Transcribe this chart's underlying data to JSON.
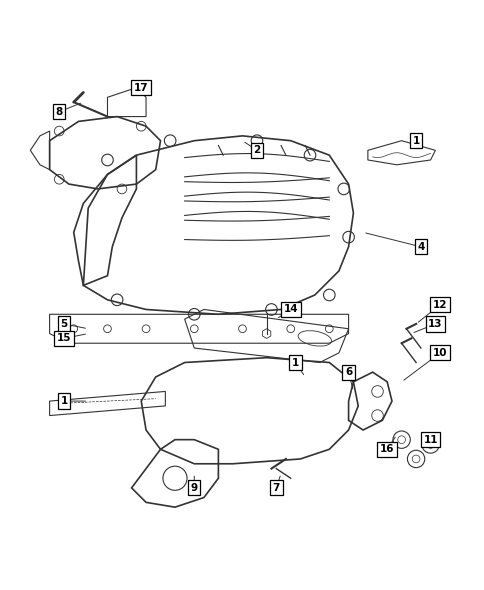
{
  "background_color": "#ffffff",
  "line_color": "#333333",
  "fig_width": 4.85,
  "fig_height": 5.9,
  "dpi": 100
}
